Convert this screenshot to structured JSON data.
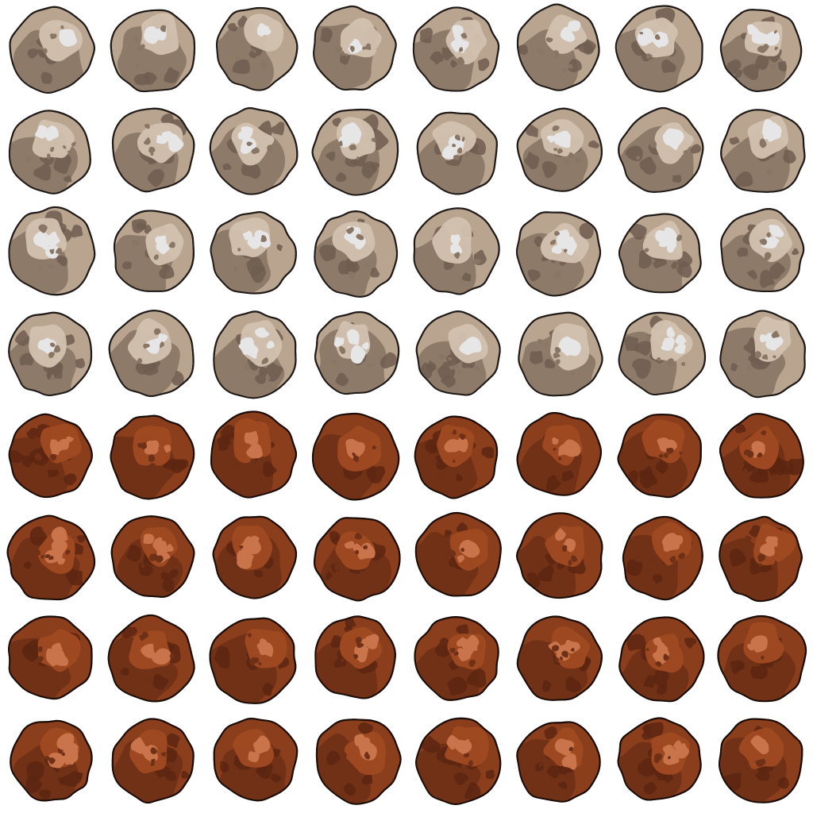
{
  "sprite_sheet": {
    "rows": 8,
    "columns": 8,
    "frames_per_variant": 32,
    "variants": [
      {
        "name": "tan",
        "rows": [
          0,
          1,
          2,
          3
        ],
        "palette": {
          "outline": "#1f1a17",
          "shadow": "#6e5d50",
          "mid": "#8a7665",
          "base": "#b9a48f",
          "light": "#d3c2b0",
          "highlight": "#e6e6e6"
        }
      },
      {
        "name": "rust",
        "rows": [
          4,
          5,
          6,
          7
        ],
        "palette": {
          "outline": "#1a0c06",
          "shadow": "#5c2610",
          "mid": "#6e3016",
          "base": "#8b3e1c",
          "light": "#a04a22",
          "highlight": "#c9744b"
        }
      }
    ]
  }
}
